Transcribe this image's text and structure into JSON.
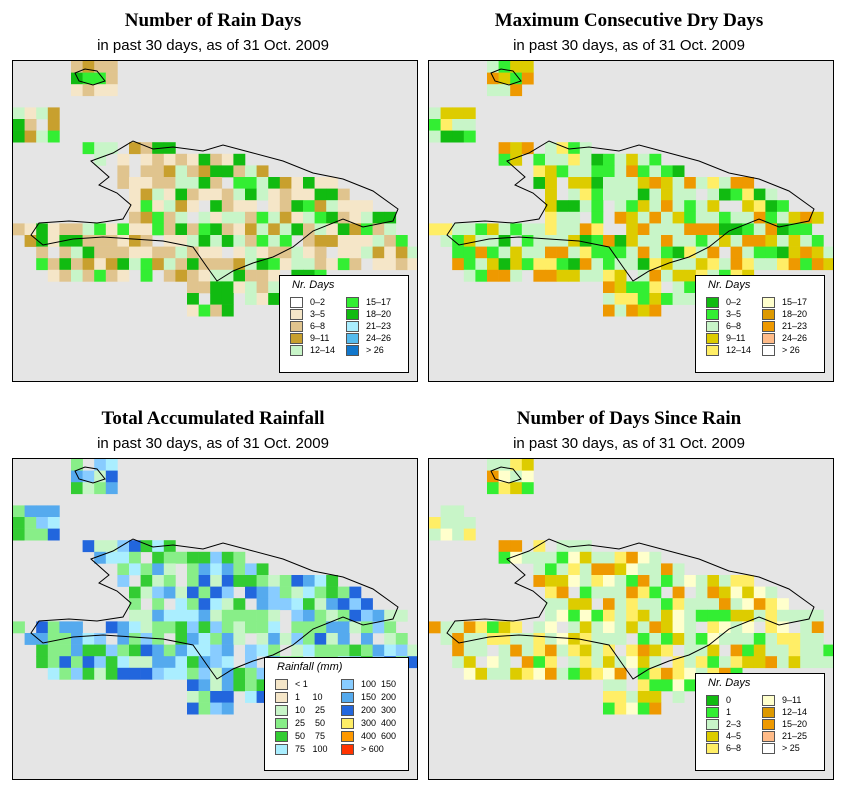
{
  "panels": [
    {
      "title": "Number of Rain Days",
      "subtitle": "in past 30 days, as of  31 Oct. 2009",
      "legend_title": "Nr. Days",
      "legend": [
        {
          "label": "0–2",
          "color": "#ffffff"
        },
        {
          "label": "3–5",
          "color": "#f5e6c8"
        },
        {
          "label": "6–8",
          "color": "#e0c48e"
        },
        {
          "label": "9–11",
          "color": "#c8a02e"
        },
        {
          "label": "12–14",
          "color": "#c8f5c8"
        },
        {
          "label": "15–17",
          "color": "#33ee33"
        },
        {
          "label": "18–20",
          "color": "#11bb11"
        },
        {
          "label": "21–23",
          "color": "#aaeeff"
        },
        {
          "label": "24–26",
          "color": "#55bbee"
        },
        {
          "label": "> 26",
          "color": "#1177cc"
        }
      ]
    },
    {
      "title": "Maximum Consecutive Dry Days",
      "subtitle": "in past 30 days, as of  31 Oct. 2009",
      "legend_title": "Nr. Days",
      "legend": [
        {
          "label": "0–2",
          "color": "#11bb11"
        },
        {
          "label": "3–5",
          "color": "#33ee33"
        },
        {
          "label": "6–8",
          "color": "#c8f5c8"
        },
        {
          "label": "9–11",
          "color": "#ddcc00"
        },
        {
          "label": "12–14",
          "color": "#ffee66"
        },
        {
          "label": "15–17",
          "color": "#ffffcc"
        },
        {
          "label": "18–20",
          "color": "#dd9900"
        },
        {
          "label": "21–23",
          "color": "#ee9900"
        },
        {
          "label": "24–26",
          "color": "#ffbb88"
        },
        {
          "label": "> 26",
          "color": "#ffffff"
        }
      ]
    },
    {
      "title": "Total Accumulated Rainfall",
      "subtitle": "in past 30 days, as of  31 Oct. 2009",
      "legend_title": "Rainfall (mm)",
      "legend": [
        {
          "label": "< 1",
          "color": "#f5e6c8"
        },
        {
          "label": "1     10",
          "color": "#f5e6c8"
        },
        {
          "label": "10    25",
          "color": "#c8f5c8"
        },
        {
          "label": "25    50",
          "color": "#88ee88"
        },
        {
          "label": "50    75",
          "color": "#33cc33"
        },
        {
          "label": "75   100",
          "color": "#aaeeff"
        },
        {
          "label": "100  150",
          "color": "#88ccff"
        },
        {
          "label": "150  200",
          "color": "#55aaee"
        },
        {
          "label": "200  300",
          "color": "#2266dd"
        },
        {
          "label": "300  400",
          "color": "#ffee66"
        },
        {
          "label": "400  600",
          "color": "#ff9900"
        },
        {
          "label": "> 600",
          "color": "#ff3300"
        }
      ]
    },
    {
      "title": "Number of Days Since Rain",
      "subtitle": "in past 30 days, as of  31 Oct. 2009",
      "legend_title": "Nr. Days",
      "legend": [
        {
          "label": "0",
          "color": "#11bb11"
        },
        {
          "label": "1",
          "color": "#33ee33"
        },
        {
          "label": "2–3",
          "color": "#c8f5c8"
        },
        {
          "label": "4–5",
          "color": "#ddcc00"
        },
        {
          "label": "6–8",
          "color": "#ffee66"
        },
        {
          "label": "9–11",
          "color": "#ffffcc"
        },
        {
          "label": "12–14",
          "color": "#dd9900"
        },
        {
          "label": "15–20",
          "color": "#ee9900"
        },
        {
          "label": "21–25",
          "color": "#ffbb88"
        },
        {
          "label": "> 25",
          "color": "#ffffff"
        }
      ]
    }
  ]
}
